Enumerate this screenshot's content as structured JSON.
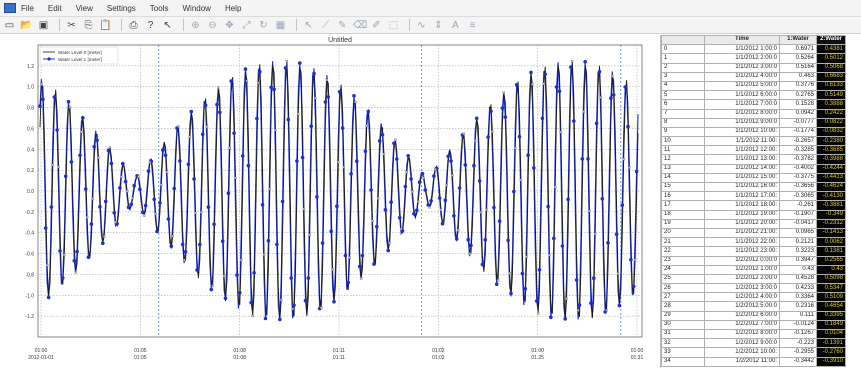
{
  "menu": [
    "File",
    "Edit",
    "View",
    "Settings",
    "Tools",
    "Window",
    "Help"
  ],
  "toolbar_icons": [
    "new-document-icon",
    "open-folder-icon",
    "save-icon",
    "cut-icon",
    "copy-icon",
    "paste-icon",
    "print-icon",
    "help-icon",
    "context-help-icon",
    "zoom-in-icon",
    "zoom-out-icon",
    "pan-icon",
    "zoom-fit-icon",
    "refresh-icon",
    "grid-icon",
    "pointer-icon",
    "line-tool-icon",
    "pencil-icon",
    "eraser-icon",
    "marker-icon",
    "select-icon",
    "curve-icon",
    "scale-icon",
    "text-icon",
    "legend-icon"
  ],
  "chart": {
    "title": "Untitled",
    "legend": [
      "Water Level 0 [meter]",
      "Water Level 1 [meter]"
    ]
  },
  "chart_data": {
    "type": "line",
    "title": "Untitled",
    "xlabel": "",
    "ylabel": "",
    "ylim": [
      -1.4,
      1.4
    ],
    "yticks": [
      1.2,
      1.0,
      0.8,
      0.6,
      0.4,
      0.2,
      0.0,
      -0.2,
      -0.4,
      -0.6,
      -0.8,
      -1.0,
      -1.2
    ],
    "ytick_labels": [
      "1.2",
      "1.0",
      "0.8",
      "0.6",
      "0.4",
      "0.2",
      "0.0",
      "-0.2",
      "-0.4",
      "-0.6",
      "-0.8",
      "-1.0",
      "-1.2"
    ],
    "xticks": [
      {
        "l1": "01:00",
        "l2": "2012-01-01"
      },
      {
        "l1": "01:05",
        "l2": "01:05"
      },
      {
        "l1": "01:08",
        "l2": "01:08"
      },
      {
        "l1": "01:11",
        "l2": "01:11"
      },
      {
        "l1": "01:02",
        "l2": "01:02"
      },
      {
        "l1": "01:00",
        "l2": "01:25"
      },
      {
        "l1": "01:00",
        "l2": "01:31"
      }
    ],
    "grid": true,
    "legend_position": "top-left",
    "series": [
      {
        "name": "Water Level 0 [meter]",
        "color": "#1a1a1a"
      },
      {
        "name": "Water Level 1 [meter]",
        "color": "#1c2fd4"
      }
    ]
  },
  "table": {
    "headers": [
      "",
      "Time",
      "1:Water",
      "2:Water"
    ],
    "rows": [
      [
        "0",
        "1/1/2012 1:00:0",
        "0.6971",
        "0.4381"
      ],
      [
        "1",
        "1/1/2012 2:00:0",
        "0.5264",
        "0.5012"
      ],
      [
        "2",
        "1/1/2012 3:00:0",
        "0.5164",
        "0.5068"
      ],
      [
        "3",
        "1/1/2012 4:00:0",
        "0.463",
        "0.6683"
      ],
      [
        "4",
        "1/1/2012 5:00:0",
        "0.3776",
        "0.6133"
      ],
      [
        "5",
        "1/1/2012 6:00:0",
        "0.2765",
        "0.5149"
      ],
      [
        "6",
        "1/1/2012 7:00:0",
        "0.1528",
        "0.3888"
      ],
      [
        "7",
        "1/1/2012 8:00:0",
        "0.0942",
        "0.2422"
      ],
      [
        "8",
        "1/1/2012 9:00:0",
        "-0.0777",
        "0.0822"
      ],
      [
        "9",
        "1/1/2012 10:00:",
        "-0.1774",
        "-0.0832"
      ],
      [
        "10",
        "1/1/2012 11:00:",
        "-0.2657",
        "-0.2380"
      ],
      [
        "11",
        "1/1/2012 12:00:",
        "-0.3285",
        "-0.3685"
      ],
      [
        "12",
        "1/1/2012 13:00:",
        "-0.3782",
        "-0.3988"
      ],
      [
        "13",
        "1/1/2012 14:00:",
        "-0.4002",
        "-0.4244"
      ],
      [
        "14",
        "1/1/2012 15:00:",
        "-0.3775",
        "-0.4413"
      ],
      [
        "15",
        "1/1/2012 16:00:",
        "-0.3656",
        "-0.4624"
      ],
      [
        "16",
        "1/1/2012 17:00:",
        "-0.3065",
        "-0.4130"
      ],
      [
        "17",
        "1/1/2012 18:00:",
        "-0.261",
        "-0.3881"
      ],
      [
        "18",
        "1/1/2012 19:00:",
        "-0.1907",
        "-0.349"
      ],
      [
        "19",
        "1/1/2012 20:00:",
        "-0.0417",
        "-0.2312"
      ],
      [
        "20",
        "1/1/2012 21:00:",
        "0.0965",
        "-0.1413"
      ],
      [
        "21",
        "1/1/2012 22:00:",
        "0.2121",
        "0.0062"
      ],
      [
        "22",
        "1/1/2012 23:00:",
        "0.3223",
        "0.1381"
      ],
      [
        "23",
        "1/2/2012 0:00:0",
        "0.3947",
        "0.2565"
      ],
      [
        "24",
        "1/2/2012 1:00:0",
        "0.43",
        "0.43"
      ],
      [
        "25",
        "1/2/2012 2:00:0",
        "0.4528",
        "0.5098"
      ],
      [
        "26",
        "1/2/2012 3:00:0",
        "0.4233",
        "0.5347"
      ],
      [
        "27",
        "1/2/2012 4:00:0",
        "0.3364",
        "0.5109"
      ],
      [
        "28",
        "1/2/2012 5:00:0",
        "0.2316",
        "0.4654"
      ],
      [
        "29",
        "1/2/2012 6:00:0",
        "0.111",
        "0.3395"
      ],
      [
        "30",
        "1/2/2012 7:00:0",
        "-0.0124",
        "0.1849"
      ],
      [
        "31",
        "1/2/2012 8:00:0",
        "-0.1267",
        "0.0104"
      ],
      [
        "32",
        "1/2/2012 9:00:0",
        "-0.223",
        "-0.1391"
      ],
      [
        "33",
        "1/2/2012 10:00:",
        "-0.2955",
        "-0.2760"
      ],
      [
        "34",
        "1/2/2012 11:00:",
        "-0.3442",
        "-0.3910"
      ]
    ]
  }
}
